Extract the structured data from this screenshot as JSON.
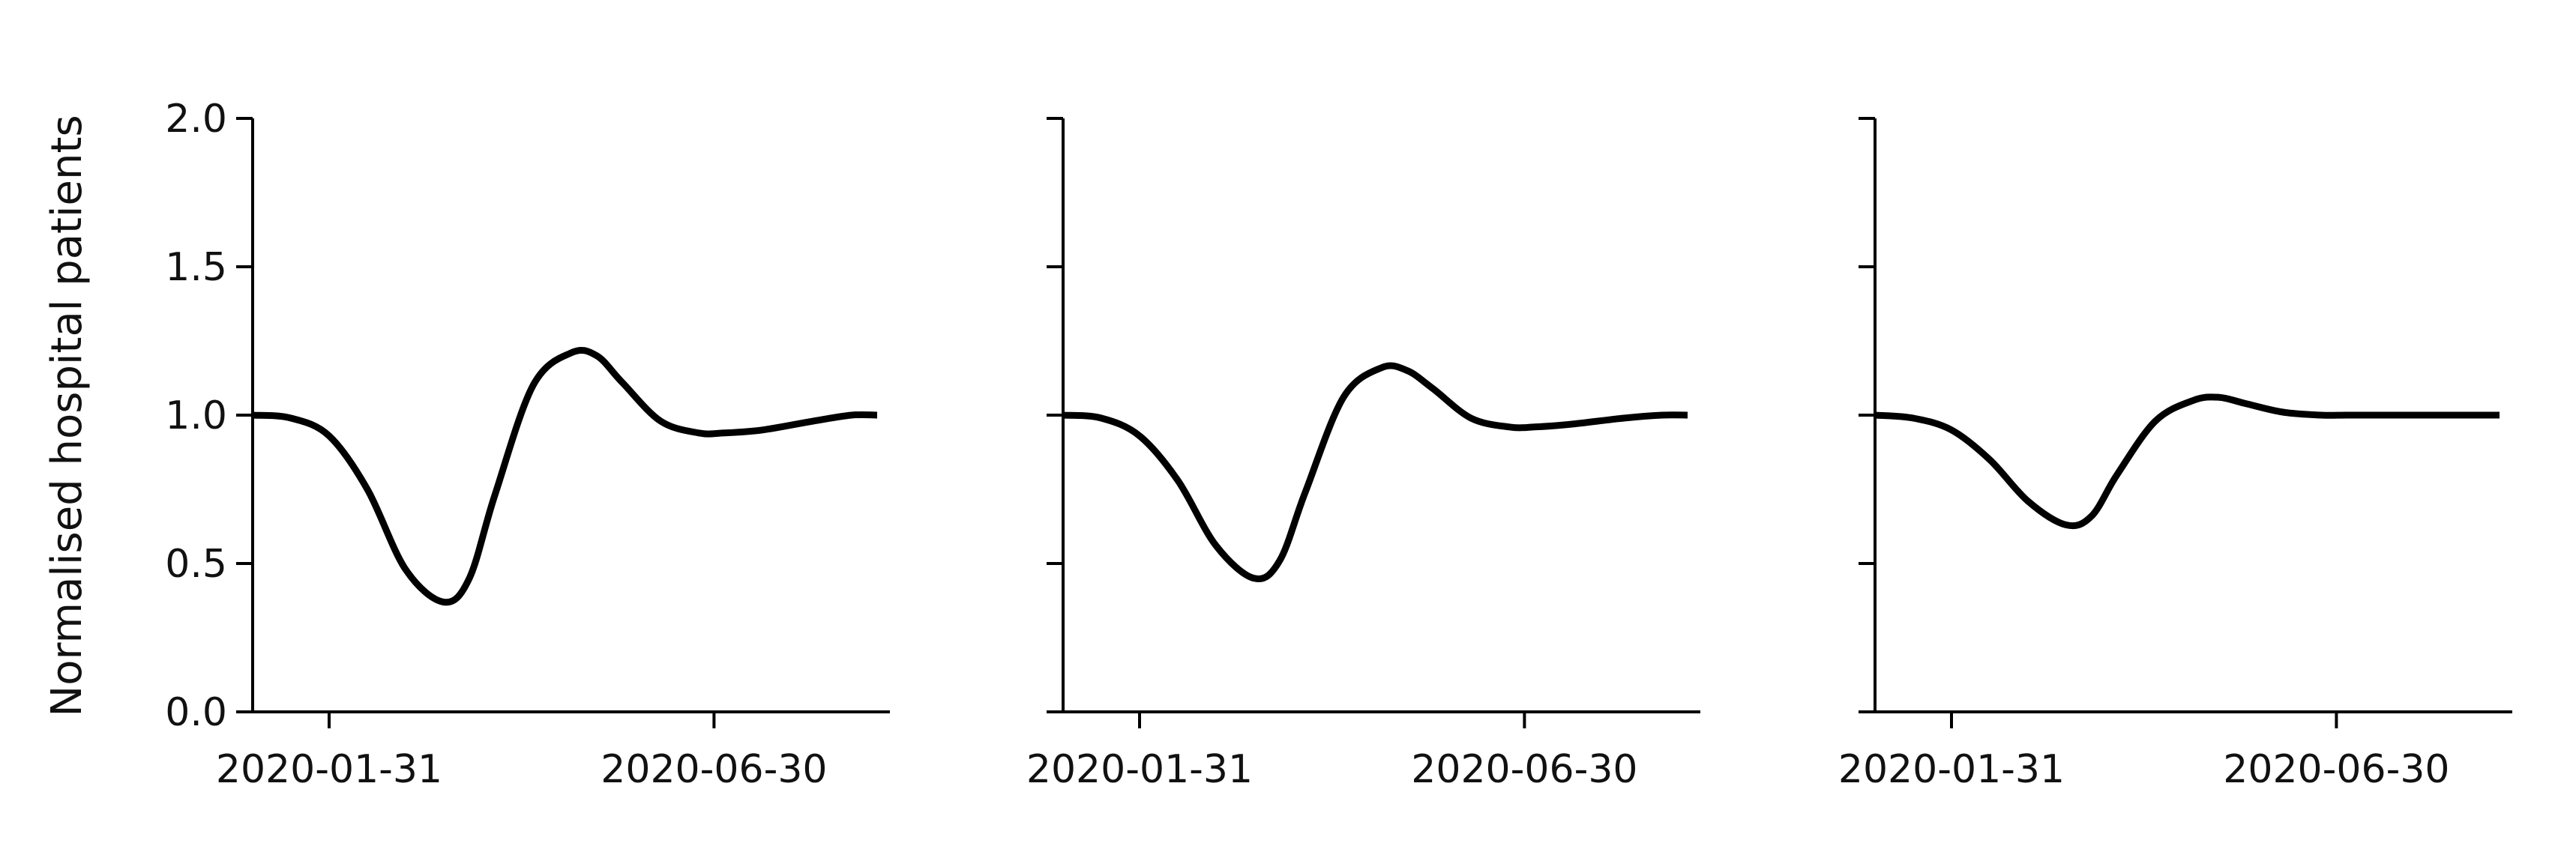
{
  "chart_data": {
    "type": "line",
    "ylabel": "Normalised hospital patients",
    "y_ticks": [
      "0.0",
      "0.5",
      "1.0",
      "1.5",
      "2.0"
    ],
    "ylim": [
      0,
      2
    ],
    "x_ticks": [
      "2020-01-31",
      "2020-06-30"
    ],
    "xlim": [
      "2020-01-01",
      "2020-09-07"
    ],
    "shared_y": true,
    "grid": false,
    "line_color": "#000000",
    "panels": [
      {
        "x": [
          "2020-01-01",
          "2020-01-16",
          "2020-01-31",
          "2020-02-15",
          "2020-03-01",
          "2020-03-16",
          "2020-03-26",
          "2020-04-05",
          "2020-04-20",
          "2020-05-05",
          "2020-05-15",
          "2020-05-25",
          "2020-06-09",
          "2020-06-24",
          "2020-07-04",
          "2020-07-19",
          "2020-08-08",
          "2020-08-23",
          "2020-09-02"
        ],
        "y": [
          1.0,
          0.99,
          0.93,
          0.75,
          0.48,
          0.37,
          0.45,
          0.73,
          1.1,
          1.21,
          1.2,
          1.11,
          0.98,
          0.94,
          0.94,
          0.95,
          0.98,
          1.0,
          1.0
        ]
      },
      {
        "x": [
          "2020-01-01",
          "2020-01-16",
          "2020-01-31",
          "2020-02-15",
          "2020-03-01",
          "2020-03-16",
          "2020-03-26",
          "2020-04-05",
          "2020-04-20",
          "2020-05-05",
          "2020-05-15",
          "2020-05-25",
          "2020-06-09",
          "2020-06-24",
          "2020-07-04",
          "2020-07-19",
          "2020-08-08",
          "2020-08-23",
          "2020-09-02"
        ],
        "y": [
          1.0,
          0.99,
          0.93,
          0.78,
          0.56,
          0.45,
          0.51,
          0.74,
          1.06,
          1.16,
          1.15,
          1.09,
          0.99,
          0.96,
          0.96,
          0.97,
          0.99,
          1.0,
          1.0
        ]
      },
      {
        "x": [
          "2020-01-01",
          "2020-01-16",
          "2020-01-31",
          "2020-02-15",
          "2020-03-01",
          "2020-03-16",
          "2020-03-26",
          "2020-04-05",
          "2020-04-20",
          "2020-05-05",
          "2020-05-15",
          "2020-05-25",
          "2020-06-09",
          "2020-06-24",
          "2020-07-04",
          "2020-07-19",
          "2020-08-08",
          "2020-08-23",
          "2020-09-02"
        ],
        "y": [
          1.0,
          0.99,
          0.95,
          0.85,
          0.71,
          0.63,
          0.66,
          0.8,
          0.98,
          1.05,
          1.06,
          1.04,
          1.01,
          1.0,
          1.0,
          1.0,
          1.0,
          1.0,
          1.0
        ]
      }
    ]
  }
}
